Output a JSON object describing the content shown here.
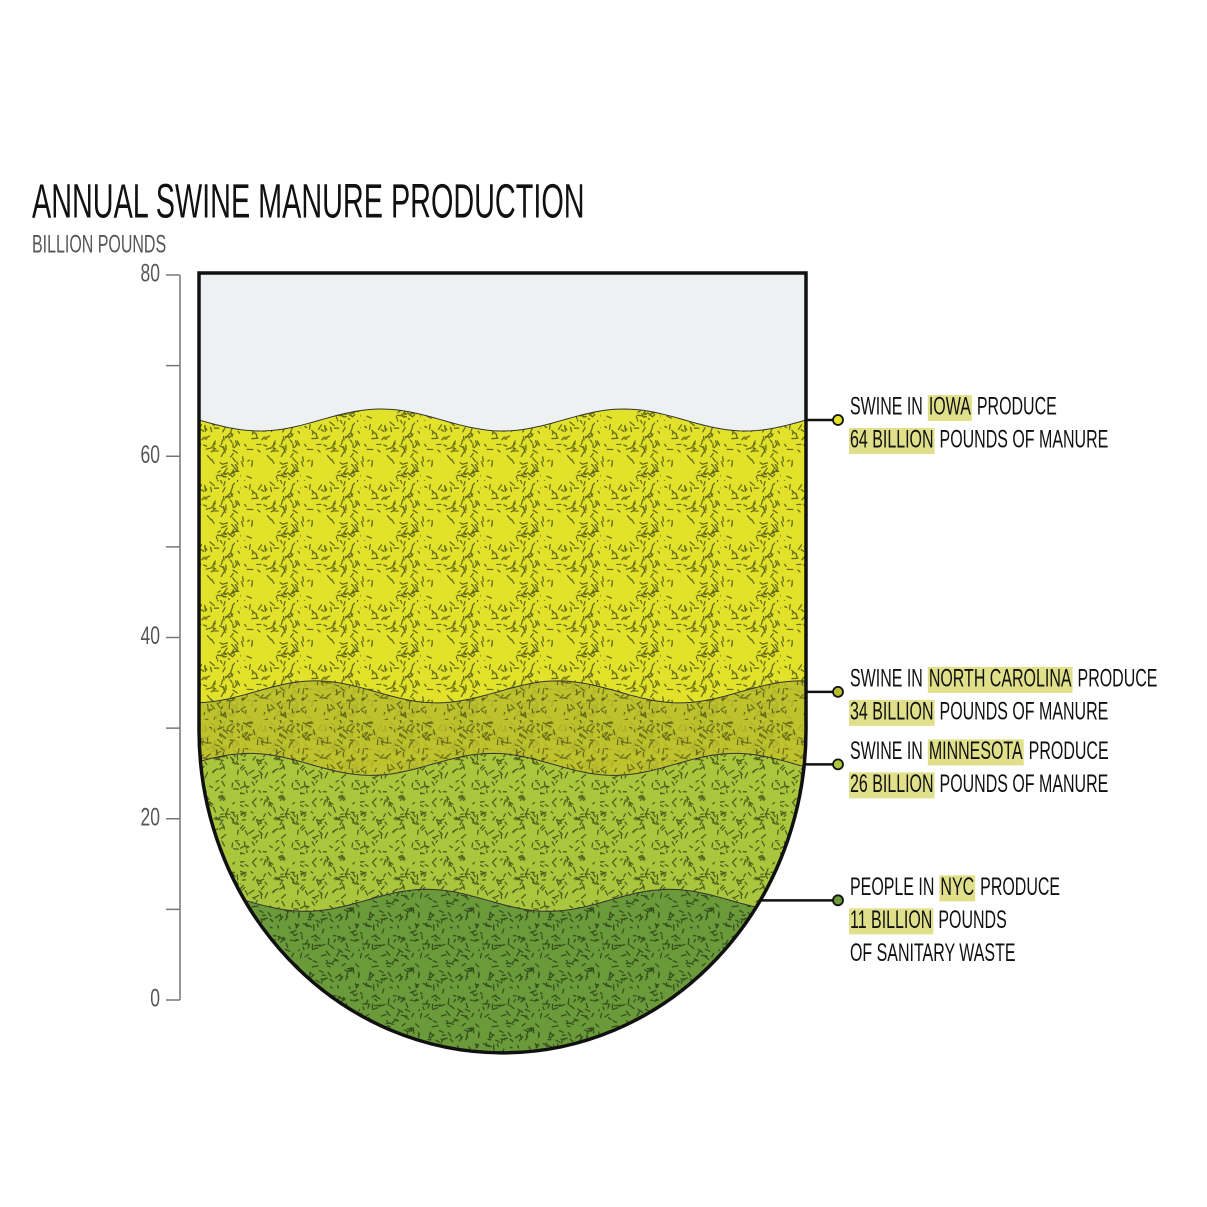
{
  "chart_data": {
    "type": "level",
    "title": "ANNUAL SWINE MANURE PRODUCTION",
    "subtitle": "BILLION POUNDS",
    "ylim": [
      0,
      80
    ],
    "yticks": [
      0,
      20,
      40,
      60,
      80
    ],
    "minor_yticks": [
      10,
      30,
      50,
      70
    ],
    "categories": [
      "IOWA",
      "NORTH CAROLINA",
      "MINNESOTA",
      "NYC"
    ],
    "values": [
      64,
      34,
      26,
      11
    ],
    "value_labels": [
      "64 BILLION",
      "34 BILLION",
      "26 BILLION",
      "11 BILLION"
    ],
    "colors": [
      "#e2e22a",
      "#b8bc2e",
      "#a9c63c",
      "#6a9a3a"
    ],
    "prefixes": [
      "SWINE IN",
      "SWINE IN",
      "SWINE IN",
      "PEOPLE IN"
    ],
    "suffixes": [
      "PRODUCE",
      "PRODUCE",
      "PRODUCE",
      "PRODUCE"
    ],
    "tails": [
      [
        "POUNDS OF MANURE"
      ],
      [
        "POUNDS OF MANURE"
      ],
      [
        "POUNDS OF MANURE"
      ],
      [
        "POUNDS",
        "OF SANITARY WASTE"
      ]
    ]
  }
}
